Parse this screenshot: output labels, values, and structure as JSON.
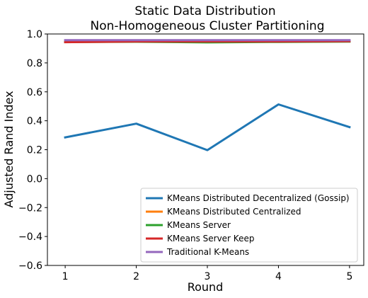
{
  "chart_data": {
    "type": "line",
    "title": [
      "Static Data Distribution",
      "Non-Homogeneous Cluster Partitioning"
    ],
    "xlabel": "Round",
    "ylabel": "Adjusted Rand Index",
    "x": [
      1,
      2,
      3,
      4,
      5
    ],
    "xticks": [
      "1",
      "2",
      "3",
      "4",
      "5"
    ],
    "yticks": [
      "−0.6",
      "−0.4",
      "−0.2",
      "0.0",
      "0.2",
      "0.4",
      "0.6",
      "0.8",
      "1.0"
    ],
    "ylim": [
      -0.6,
      1.0
    ],
    "xlim": [
      0.75,
      5.2
    ],
    "grid": false,
    "legend_position": "lower right",
    "series": [
      {
        "name": "KMeans Distributed Decentralized (Gossip)",
        "color": "#1f77b4",
        "values": [
          0.285,
          0.38,
          0.197,
          0.513,
          0.356
        ]
      },
      {
        "name": "KMeans Distributed Centralized",
        "color": "#ff7f0e",
        "values": [
          0.948,
          0.95,
          0.946,
          0.948,
          0.951
        ]
      },
      {
        "name": "KMeans Server",
        "color": "#2ca02c",
        "values": [
          0.944,
          0.946,
          0.942,
          0.945,
          0.947
        ]
      },
      {
        "name": "KMeans Server Keep",
        "color": "#d62728",
        "values": [
          0.943,
          0.948,
          0.948,
          0.948,
          0.95
        ]
      },
      {
        "name": "Traditional K-Means",
        "color": "#9467bd",
        "values": [
          0.957,
          0.957,
          0.957,
          0.957,
          0.957
        ]
      }
    ]
  }
}
